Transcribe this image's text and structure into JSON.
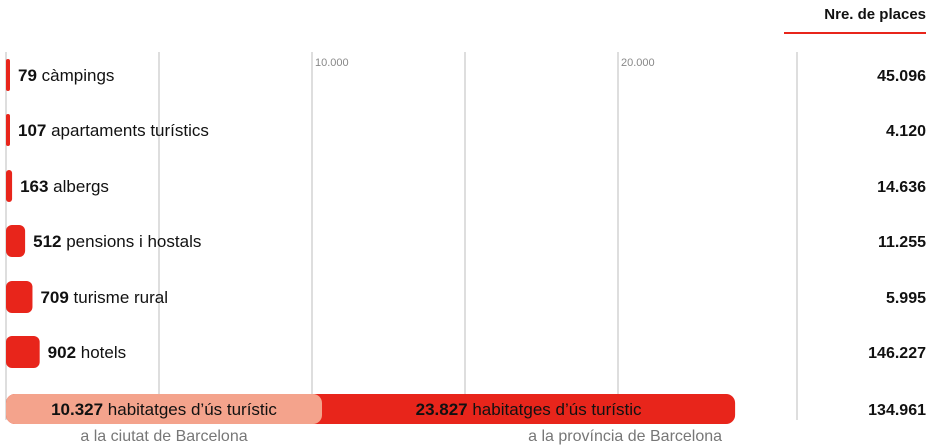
{
  "header": {
    "places_label": "Nre. de places"
  },
  "chart_data": {
    "type": "bar",
    "orientation": "horizontal",
    "xlim": [
      0,
      23827
    ],
    "x_ticks": [
      {
        "value": 10000,
        "label": "10.000"
      },
      {
        "value": 20000,
        "label": "20.000"
      }
    ],
    "grid": true,
    "categories": [
      {
        "count": 79,
        "count_label": "79",
        "name": "càmpings",
        "places": "45.096"
      },
      {
        "count": 107,
        "count_label": "107",
        "name": "apartaments turístics",
        "places": "4.120"
      },
      {
        "count": 163,
        "count_label": "163",
        "name": "albergs",
        "places": "14.636"
      },
      {
        "count": 512,
        "count_label": "512",
        "name": "pensions i hostals",
        "places": "11.255"
      },
      {
        "count": 709,
        "count_label": "709",
        "name": "turisme rural",
        "places": "5.995"
      },
      {
        "count": 902,
        "count_label": "902",
        "name": "hotels",
        "places": "146.227"
      }
    ],
    "stacked_row": {
      "places": "134.961",
      "segments": [
        {
          "value": 10327,
          "value_label": "10.327",
          "name": "habitatges d’ús turístic",
          "sublabel": "a la ciutat de Barcelona",
          "color": "#f4a38c"
        },
        {
          "value": 23827,
          "value_label": "23.827",
          "name": "habitatges d’ús turístic",
          "sublabel": "a la província de Barcelona",
          "color": "#e8251b"
        }
      ]
    },
    "colors": {
      "bar": "#e8251b",
      "light": "#f4a38c",
      "grid": "#bdbdbd",
      "accent": "#e8251b"
    }
  }
}
